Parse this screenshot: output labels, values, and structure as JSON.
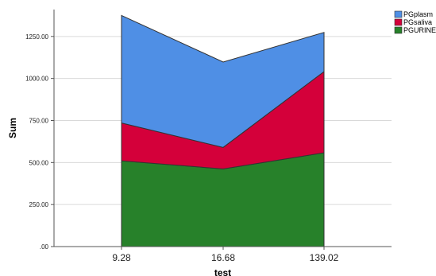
{
  "chart_data": {
    "type": "area",
    "stacked": true,
    "categories": [
      "9.28",
      "16.68",
      "139.02"
    ],
    "series": [
      {
        "name": "PGURINE",
        "values": [
          510,
          462,
          558
        ],
        "color": "#27812a"
      },
      {
        "name": "PGsaliva",
        "values": [
          225,
          128,
          483
        ],
        "color": "#d4003a"
      },
      {
        "name": "PGplasma",
        "values": [
          640,
          508,
          233
        ],
        "color": "#4f8fe5"
      }
    ],
    "xlabel": "test",
    "ylabel": "Sum",
    "ylim": [
      0,
      1410
    ],
    "yticks": [
      0,
      250,
      500,
      750,
      1000,
      1250
    ],
    "ytick_labels": [
      ".00",
      "250.00",
      "500.00",
      "750.00",
      "1000.00",
      "1250.00"
    ],
    "grid": "horizontal",
    "legend_position": "top-right",
    "legend_order": [
      "PGplasma",
      "PGsaliva",
      "PGURINE"
    ],
    "legend_labels": [
      "PGplasm",
      "PGsaliva",
      "PGURINE"
    ]
  }
}
